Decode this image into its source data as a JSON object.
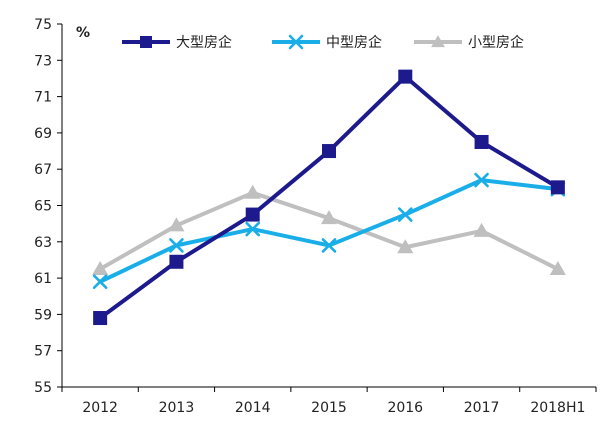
{
  "chart_data": {
    "type": "line",
    "ylabel": "%",
    "categories": [
      "2012",
      "2013",
      "2014",
      "2015",
      "2016",
      "2017",
      "2018H1"
    ],
    "ylim": [
      55,
      75
    ],
    "yticks": [
      55,
      57,
      59,
      61,
      63,
      65,
      67,
      69,
      71,
      73,
      75
    ],
    "grid": false,
    "legend_position": "top",
    "series": [
      {
        "name": "大型房企",
        "color": "#1c1a8c",
        "marker": "square",
        "values": [
          58.8,
          61.9,
          64.5,
          68.0,
          72.1,
          68.5,
          66.0
        ]
      },
      {
        "name": "中型房企",
        "color": "#1aaee8",
        "marker": "x",
        "values": [
          60.8,
          62.8,
          63.7,
          62.8,
          64.5,
          66.4,
          65.9
        ]
      },
      {
        "name": "小型房企",
        "color": "#bfbfbf",
        "marker": "triangle",
        "values": [
          61.5,
          63.9,
          65.7,
          64.3,
          62.7,
          63.6,
          61.5
        ]
      }
    ]
  }
}
